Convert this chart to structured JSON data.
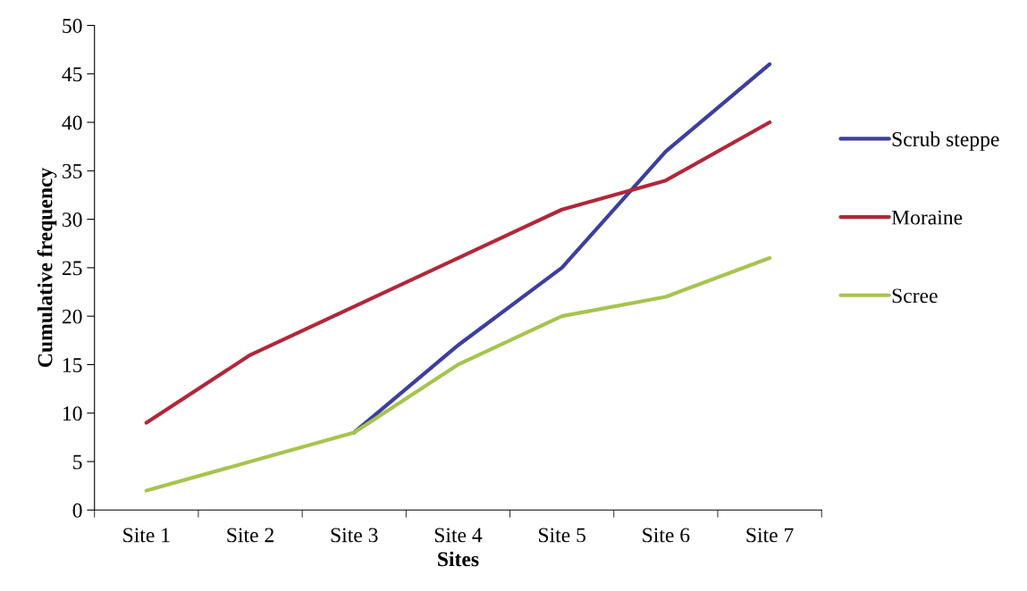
{
  "chart_data": {
    "type": "line",
    "xlabel": "Sites",
    "ylabel": "Cumulative frequency",
    "categories": [
      "Site 1",
      "Site 2",
      "Site 3",
      "Site 4",
      "Site 5",
      "Site 6",
      "Site 7"
    ],
    "series": [
      {
        "name": "Scrub steppe",
        "color": "#3c3f9c",
        "values": [
          null,
          null,
          8,
          17,
          25,
          37,
          46
        ]
      },
      {
        "name": "Moraine",
        "color": "#b0283a",
        "values": [
          9,
          16,
          21,
          26,
          31,
          34,
          40
        ]
      },
      {
        "name": "Scree",
        "color": "#a6c44e",
        "values": [
          2,
          5,
          8,
          15,
          20,
          22,
          26
        ]
      }
    ],
    "ylim": [
      0,
      50
    ],
    "yticks": [
      0,
      5,
      10,
      15,
      20,
      25,
      30,
      35,
      40,
      45,
      50
    ],
    "grid": false,
    "legend": "right",
    "marker": "none",
    "line_style": "solid"
  }
}
